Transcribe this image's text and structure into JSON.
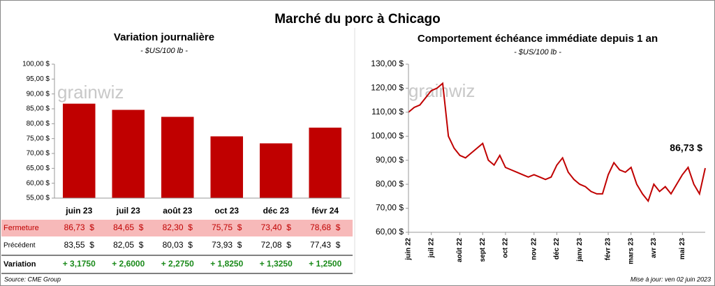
{
  "title": "Marché du porc à Chicago",
  "watermark": "grainwiz",
  "chart_data": [
    {
      "type": "bar",
      "title": "Variation  journalière",
      "subtitle": "- $US/100 lb -",
      "categories": [
        "juin 23",
        "juil 23",
        "août 23",
        "oct 23",
        "déc 23",
        "févr 24"
      ],
      "values": [
        86.73,
        84.65,
        82.3,
        75.75,
        73.4,
        78.68
      ],
      "color": "#c00000",
      "ylim": [
        55,
        100
      ],
      "yticks": [
        {
          "value": 55,
          "label": "55,00 $"
        },
        {
          "value": 60,
          "label": "60,00 $"
        },
        {
          "value": 65,
          "label": "65,00 $"
        },
        {
          "value": 70,
          "label": "70,00 $"
        },
        {
          "value": 75,
          "label": "75,00 $"
        },
        {
          "value": 80,
          "label": "80,00 $"
        },
        {
          "value": 85,
          "label": "85,00 $"
        },
        {
          "value": 90,
          "label": "90,00 $"
        },
        {
          "value": 95,
          "label": "95,00 $"
        },
        {
          "value": 100,
          "label": "100,00 $"
        }
      ],
      "grid": false
    },
    {
      "type": "line",
      "title": "Comportement  échéance immédiate depuis 1 an",
      "subtitle": "- $US/100 lb -",
      "categories": [
        "juin 22",
        null,
        null,
        null,
        "juil 22",
        null,
        null,
        null,
        null,
        "août 22",
        null,
        null,
        null,
        "sept 22",
        null,
        null,
        null,
        "oct 22",
        null,
        null,
        null,
        null,
        "nov 22",
        null,
        null,
        null,
        "déc 22",
        null,
        null,
        null,
        "janv 23",
        null,
        null,
        null,
        null,
        "févr 23",
        null,
        null,
        null,
        "mars 23",
        null,
        null,
        null,
        "avr 23",
        null,
        null,
        null,
        null,
        "mai 23",
        null,
        null,
        null,
        null
      ],
      "values": [
        110,
        112,
        113,
        116,
        119,
        120,
        122,
        100,
        95,
        92,
        91,
        93,
        95,
        97,
        90,
        88,
        92,
        87,
        86,
        85,
        84,
        83,
        84,
        83,
        82,
        83,
        88,
        91,
        85,
        82,
        80,
        79,
        77,
        76,
        76,
        84,
        89,
        86,
        85,
        87,
        80,
        76,
        73,
        80,
        77,
        79,
        76,
        80,
        84,
        87,
        80,
        76,
        86.73
      ],
      "color": "#c00000",
      "annotation": "86,73 $",
      "ylim": [
        60,
        130
      ],
      "yticks": [
        {
          "value": 60,
          "label": "60,00 $"
        },
        {
          "value": 70,
          "label": "70,00 $"
        },
        {
          "value": 80,
          "label": "80,00 $"
        },
        {
          "value": 90,
          "label": "90,00 $"
        },
        {
          "value": 100,
          "label": "100,00 $"
        },
        {
          "value": 110,
          "label": "110,00 $"
        },
        {
          "value": 120,
          "label": "120,00 $"
        },
        {
          "value": 130,
          "label": "130,00 $"
        }
      ],
      "grid": false
    }
  ],
  "table": {
    "rows": [
      {
        "label": "Fermeture",
        "cells": [
          "86,73  $",
          "84,65  $",
          "82,30  $",
          "75,75  $",
          "73,40  $",
          "78,68  $"
        ]
      },
      {
        "label": "Précédent",
        "cells": [
          "83,55  $",
          "82,05  $",
          "80,03  $",
          "73,93  $",
          "72,08  $",
          "77,43  $"
        ]
      },
      {
        "label": "Variation",
        "cells": [
          "+ 3,1750",
          "+ 2,6000",
          "+ 2,2750",
          "+ 1,8250",
          "+ 1,3250",
          "+ 1,2500"
        ]
      }
    ]
  },
  "source": "Source: CME Group",
  "updated": "Mise à jour: ven 02 juin 2023"
}
